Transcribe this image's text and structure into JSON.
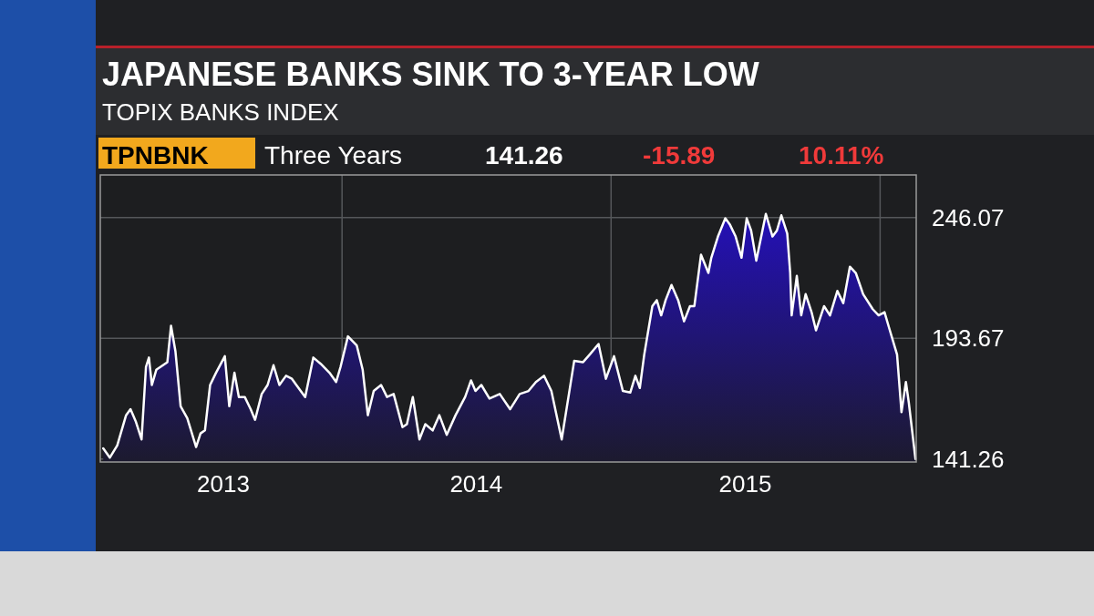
{
  "chart_data": {
    "type": "area",
    "title": "JAPANESE BANKS SINK TO 3-YEAR LOW",
    "subtitle": "TOPIX BANKS INDEX",
    "annotations": [
      "TPNBNK",
      "Three Years",
      "141.26",
      "-15.89",
      "10.11%"
    ],
    "x": [
      "2013-02-11",
      "2013-02-20",
      "2013-03-02",
      "2013-03-14",
      "2013-03-20",
      "2013-03-27",
      "2013-04-04",
      "2013-04-10",
      "2013-04-14",
      "2013-04-18",
      "2013-04-24",
      "2013-05-09",
      "2013-05-14",
      "2013-05-20",
      "2013-05-27",
      "2013-06-05",
      "2013-06-17",
      "2013-06-23",
      "2013-06-29",
      "2013-07-06",
      "2013-07-14",
      "2013-07-26",
      "2013-08-01",
      "2013-08-08",
      "2013-08-14",
      "2013-08-22",
      "2013-08-30",
      "2013-09-05",
      "2013-09-14",
      "2013-09-22",
      "2013-09-30",
      "2013-10-08",
      "2013-10-17",
      "2013-10-25",
      "2013-10-31",
      "2013-11-12",
      "2013-11-23",
      "2013-12-03",
      "2013-12-15",
      "2013-12-24",
      "2013-12-30",
      "2014-01-09",
      "2014-01-21",
      "2014-01-29",
      "2014-02-05",
      "2014-02-13",
      "2014-02-23",
      "2014-03-03",
      "2014-03-12",
      "2014-03-24",
      "2014-03-30",
      "2014-04-07",
      "2014-04-16",
      "2014-04-24",
      "2014-05-04",
      "2014-05-13",
      "2014-05-23",
      "2014-06-04",
      "2014-06-17",
      "2014-06-25",
      "2014-07-01",
      "2014-07-09",
      "2014-07-20",
      "2014-08-03",
      "2014-08-17",
      "2014-08-30",
      "2014-09-11",
      "2014-09-21",
      "2014-10-02",
      "2014-10-12",
      "2014-10-26",
      "2014-11-12",
      "2014-11-24",
      "2014-12-03",
      "2014-12-15",
      "2014-12-25",
      "2015-01-05",
      "2015-01-17",
      "2015-01-27",
      "2015-02-03",
      "2015-02-09",
      "2015-02-15",
      "2015-02-26",
      "2015-03-04",
      "2015-03-10",
      "2015-03-16",
      "2015-03-24",
      "2015-04-02",
      "2015-04-10",
      "2015-04-18",
      "2015-04-24",
      "2015-05-03",
      "2015-05-13",
      "2015-05-17",
      "2015-05-26",
      "2015-06-05",
      "2015-06-11",
      "2015-06-19",
      "2015-06-27",
      "2015-07-04",
      "2015-07-10",
      "2015-07-17",
      "2015-07-30",
      "2015-08-08",
      "2015-08-14",
      "2015-08-20",
      "2015-08-28",
      "2015-09-01",
      "2015-09-03",
      "2015-09-10",
      "2015-09-16",
      "2015-09-22",
      "2015-09-30",
      "2015-10-06",
      "2015-10-17",
      "2015-10-25",
      "2015-11-04",
      "2015-11-12",
      "2015-11-21",
      "2015-11-29",
      "2015-12-09",
      "2015-12-22",
      "2015-12-30",
      "2016-01-07",
      "2016-01-13",
      "2016-01-24",
      "2016-01-30",
      "2016-02-05",
      "2016-02-09",
      "2016-02-18"
    ],
    "series": [
      {
        "color": "#2410b8",
        "values": [
          145.9,
          141.9,
          147.2,
          160.3,
          162.9,
          157.7,
          149.8,
          181.3,
          185.3,
          173.4,
          180.0,
          183.3,
          199.1,
          187.9,
          164.2,
          159.0,
          146.5,
          152.4,
          153.7,
          173.4,
          178.7,
          185.9,
          164.2,
          178.7,
          168.2,
          168.2,
          162.9,
          158.3,
          169.5,
          173.4,
          182.0,
          173.4,
          177.4,
          176.1,
          173.4,
          168.2,
          185.3,
          182.6,
          178.7,
          174.7,
          181.3,
          194.5,
          190.5,
          180.0,
          160.3,
          170.8,
          173.4,
          168.2,
          169.5,
          155.1,
          156.4,
          168.2,
          149.8,
          156.4,
          153.7,
          160.3,
          151.8,
          160.3,
          168.2,
          175.4,
          170.8,
          173.4,
          167.5,
          169.5,
          162.9,
          169.5,
          170.8,
          174.7,
          177.4,
          170.8,
          149.8,
          183.9,
          183.3,
          186.6,
          191.2,
          176.1,
          185.9,
          170.8,
          170.1,
          177.4,
          172.1,
          186.6,
          207.6,
          210.2,
          203.6,
          210.2,
          216.8,
          210.2,
          201.0,
          207.6,
          207.6,
          229.9,
          222.0,
          228.6,
          237.8,
          245.7,
          243.1,
          237.8,
          228.6,
          245.7,
          240.4,
          227.3,
          247.6,
          237.8,
          240.4,
          247.0,
          239.1,
          222.0,
          203.6,
          220.7,
          203.6,
          212.8,
          205.0,
          197.1,
          207.6,
          203.6,
          214.2,
          208.9,
          224.7,
          222.0,
          212.8,
          206.3,
          203.6,
          205.0,
          198.4,
          186.6,
          161.6,
          174.7,
          165.6,
          141.26
        ]
      }
    ],
    "xlim": [
      "2013-02-07",
      "2016-02-19"
    ],
    "xticks": [
      {
        "value": "2013-07-24",
        "label": "2013"
      },
      {
        "value": "2014-07-02",
        "label": "2014"
      },
      {
        "value": "2015-07-02",
        "label": "2015"
      }
    ],
    "ylim": [
      140,
      264.5
    ],
    "yticks": [
      141.26,
      193.67,
      246.07
    ],
    "grid": "y",
    "ref_lines": [
      {
        "axis": "x",
        "value": "2014-01-01",
        "color": "#55575a"
      },
      {
        "axis": "x",
        "value": "2015-01-01",
        "color": "#55575a"
      },
      {
        "axis": "x",
        "value": "2016-01-01",
        "color": "#55575a"
      }
    ]
  }
}
